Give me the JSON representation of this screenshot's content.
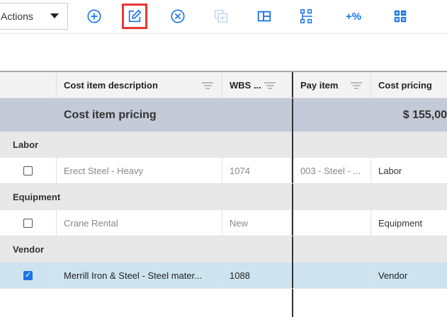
{
  "toolbar": {
    "actions_label": "Actions",
    "icons": [
      "add-circle-icon",
      "edit-icon",
      "cancel-circle-icon",
      "copy-add-icon",
      "layout-icon",
      "hierarchy-icon",
      "add-percent-icon",
      "calculator-icon"
    ],
    "percent_label": "+%"
  },
  "columns": [
    "",
    "Cost item description",
    "WBS ...",
    "Pay item",
    "Cost pricing"
  ],
  "summary": {
    "label": "Cost item pricing",
    "amount": "$ 155,00"
  },
  "groups": [
    {
      "name": "Labor",
      "rows": [
        {
          "checked": false,
          "description": "Erect Steel  - Heavy",
          "wbs": "1074",
          "pay_item": "003 - Steel - ...",
          "cost_pricing": "Labor"
        }
      ]
    },
    {
      "name": "Equipment",
      "rows": [
        {
          "checked": false,
          "description": "Crane Rental",
          "wbs": "New",
          "pay_item": "",
          "cost_pricing": "Equipment"
        }
      ]
    },
    {
      "name": "Vendor",
      "rows": [
        {
          "checked": true,
          "description": "Merrill Iron & Steel - Steel mater...",
          "wbs": "1088",
          "pay_item": "",
          "cost_pricing": "Vendor"
        }
      ]
    }
  ],
  "colors": {
    "accent": "#1a73e8",
    "summary_bg": "#c5cad8",
    "selected_bg": "#cde4f0",
    "highlight": "#e53935"
  }
}
